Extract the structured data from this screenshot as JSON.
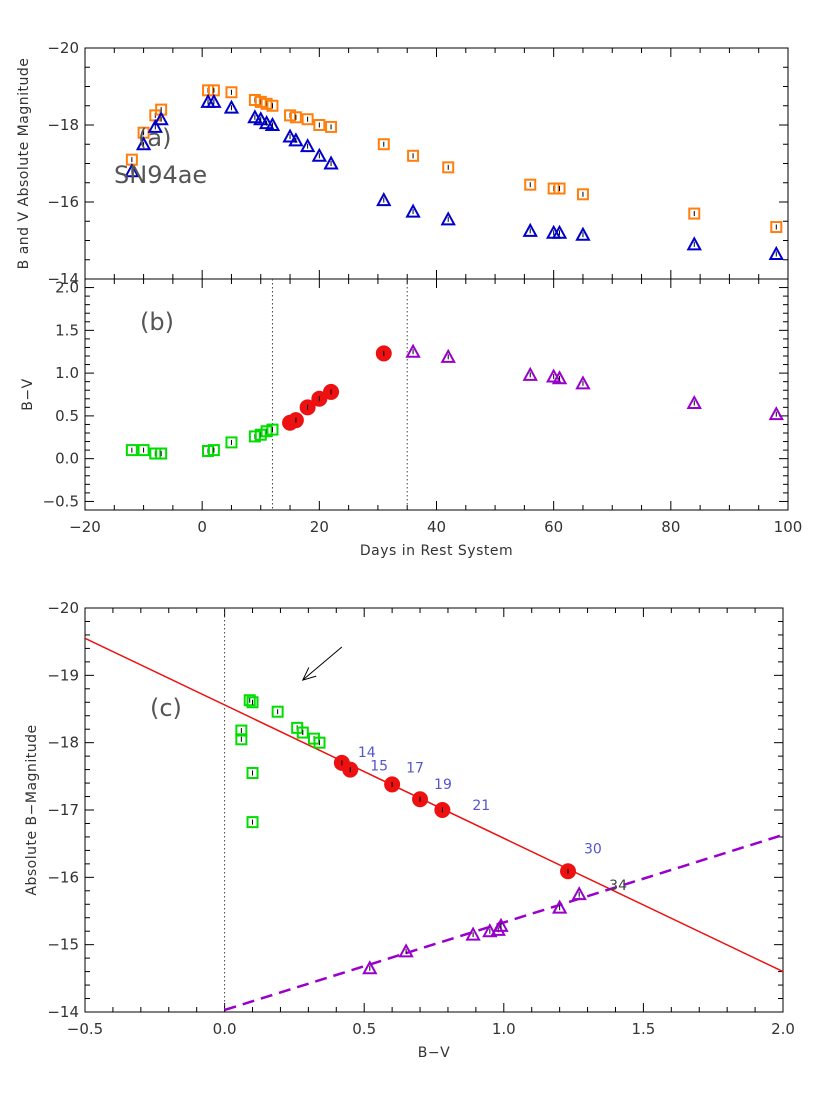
{
  "colors": {
    "b_mag": "#ff7f0e",
    "v_mag": "#0000cc",
    "early": "#00dd00",
    "mid": "#ee1111",
    "late": "#9900cc",
    "fit": "#ee1111",
    "label_blue": "#5555cc",
    "label_dark": "#444444"
  },
  "chart_data": [
    {
      "id": "a",
      "type": "scatter",
      "panel_label": "(a)",
      "annotation": "SN94ae",
      "xlabel": "",
      "ylabel": "B and V Absolute Magnitude",
      "xlim": [
        -20,
        100
      ],
      "ylim": [
        -14,
        -20
      ],
      "yticks": [
        -20,
        -18,
        -16,
        -14
      ],
      "series": [
        {
          "marker": "square",
          "color_key": "b_mag",
          "points": [
            [
              -12,
              -17.1
            ],
            [
              -10,
              -17.8
            ],
            [
              -8,
              -18.25
            ],
            [
              -7,
              -18.4
            ],
            [
              1,
              -18.9
            ],
            [
              2,
              -18.9
            ],
            [
              5,
              -18.85
            ],
            [
              9,
              -18.65
            ],
            [
              10,
              -18.6
            ],
            [
              11,
              -18.55
            ],
            [
              12,
              -18.5
            ],
            [
              15,
              -18.25
            ],
            [
              16,
              -18.2
            ],
            [
              18,
              -18.15
            ],
            [
              20,
              -18.0
            ],
            [
              22,
              -17.95
            ],
            [
              31,
              -17.5
            ],
            [
              36,
              -17.2
            ],
            [
              42,
              -16.9
            ],
            [
              56,
              -16.45
            ],
            [
              60,
              -16.35
            ],
            [
              61,
              -16.35
            ],
            [
              65,
              -16.2
            ],
            [
              84,
              -15.7
            ],
            [
              98,
              -15.35
            ]
          ]
        },
        {
          "marker": "triangle",
          "color_key": "v_mag",
          "points": [
            [
              -12,
              -16.8
            ],
            [
              -10,
              -17.5
            ],
            [
              -8,
              -17.95
            ],
            [
              -7,
              -18.15
            ],
            [
              1,
              -18.6
            ],
            [
              2,
              -18.6
            ],
            [
              5,
              -18.45
            ],
            [
              9,
              -18.2
            ],
            [
              10,
              -18.15
            ],
            [
              11,
              -18.05
            ],
            [
              12,
              -18.0
            ],
            [
              15,
              -17.7
            ],
            [
              16,
              -17.6
            ],
            [
              18,
              -17.45
            ],
            [
              20,
              -17.2
            ],
            [
              22,
              -17.0
            ],
            [
              31,
              -16.05
            ],
            [
              36,
              -15.75
            ],
            [
              42,
              -15.55
            ],
            [
              56,
              -15.25
            ],
            [
              60,
              -15.2
            ],
            [
              61,
              -15.2
            ],
            [
              65,
              -15.15
            ],
            [
              84,
              -14.9
            ],
            [
              98,
              -14.65
            ]
          ]
        }
      ]
    },
    {
      "id": "b",
      "type": "scatter",
      "panel_label": "(b)",
      "xlabel": "Days in Rest System",
      "ylabel": "B−V",
      "xlim": [
        -20,
        100
      ],
      "ylim": [
        -0.6,
        2.1
      ],
      "xticks": [
        -20,
        0,
        20,
        40,
        60,
        80,
        100
      ],
      "xticklabels": [
        "−20",
        "0",
        "20",
        "40",
        "60",
        "80",
        "100"
      ],
      "yticks": [
        -0.5,
        0.0,
        0.5,
        1.0,
        1.5,
        2.0
      ],
      "yticklabels": [
        "−0.5",
        "0.0",
        "0.5",
        "1.0",
        "1.5",
        "2.0"
      ],
      "vlines": [
        12,
        35
      ],
      "series": [
        {
          "marker": "square",
          "color_key": "early",
          "points": [
            [
              -12,
              0.1
            ],
            [
              -10,
              0.1
            ],
            [
              -8,
              0.06
            ],
            [
              -7,
              0.06
            ],
            [
              1,
              0.09
            ],
            [
              2,
              0.1
            ],
            [
              5,
              0.19
            ],
            [
              9,
              0.26
            ],
            [
              10,
              0.28
            ],
            [
              11,
              0.32
            ],
            [
              12,
              0.34
            ]
          ]
        },
        {
          "marker": "circle",
          "color_key": "mid",
          "points": [
            [
              15,
              0.42
            ],
            [
              16,
              0.45
            ],
            [
              18,
              0.6
            ],
            [
              20,
              0.7
            ],
            [
              22,
              0.78
            ],
            [
              31,
              1.23
            ]
          ]
        },
        {
          "marker": "triangle",
          "color_key": "late",
          "points": [
            [
              36,
              1.25
            ],
            [
              42,
              1.19
            ],
            [
              56,
              0.98
            ],
            [
              60,
              0.96
            ],
            [
              61,
              0.94
            ],
            [
              65,
              0.88
            ],
            [
              84,
              0.65
            ],
            [
              98,
              0.52
            ]
          ]
        }
      ]
    },
    {
      "id": "c",
      "type": "scatter",
      "panel_label": "(c)",
      "xlabel": "B−V",
      "ylabel": "Absolute B−Magnitude",
      "xlim": [
        -0.5,
        2.0
      ],
      "ylim": [
        -14,
        -20
      ],
      "xticks": [
        -0.5,
        0.0,
        0.5,
        1.0,
        1.5,
        2.0
      ],
      "xticklabels": [
        "−0.5",
        "0.0",
        "0.5",
        "1.0",
        "1.5",
        "2.0"
      ],
      "yticks": [
        -20,
        -19,
        -18,
        -17,
        -16,
        -15,
        -14
      ],
      "yticklabels": [
        "−20",
        "−19",
        "−18",
        "−17",
        "−16",
        "−15",
        "−14"
      ],
      "vlines": [
        0.0
      ],
      "fit_lines": [
        {
          "style": "solid",
          "color_key": "fit",
          "from": [
            -0.5,
            -19.55
          ],
          "to": [
            2.0,
            -14.6
          ]
        },
        {
          "style": "dashed",
          "color_key": "late",
          "from": [
            0.0,
            -14.03
          ],
          "to": [
            2.0,
            -16.63
          ]
        }
      ],
      "arrow": {
        "from": [
          0.42,
          -19.42
        ],
        "to": [
          0.28,
          -18.93
        ]
      },
      "series": [
        {
          "marker": "square",
          "color_key": "early",
          "points": [
            [
              0.1,
              -16.82
            ],
            [
              0.1,
              -17.55
            ],
            [
              0.06,
              -18.05
            ],
            [
              0.06,
              -18.18
            ],
            [
              0.09,
              -18.63
            ],
            [
              0.1,
              -18.6
            ],
            [
              0.19,
              -18.46
            ],
            [
              0.26,
              -18.22
            ],
            [
              0.28,
              -18.15
            ],
            [
              0.32,
              -18.06
            ],
            [
              0.34,
              -18.0
            ]
          ]
        },
        {
          "marker": "circle",
          "color_key": "mid",
          "points": [
            [
              0.42,
              -17.7
            ],
            [
              0.45,
              -17.6
            ],
            [
              0.6,
              -17.38
            ],
            [
              0.7,
              -17.16
            ],
            [
              0.78,
              -17.0
            ],
            [
              1.23,
              -16.09
            ]
          ]
        },
        {
          "marker": "triangle",
          "color_key": "late",
          "points": [
            [
              0.52,
              -14.65
            ],
            [
              0.65,
              -14.9
            ],
            [
              0.89,
              -15.15
            ],
            [
              0.95,
              -15.2
            ],
            [
              0.98,
              -15.22
            ],
            [
              0.99,
              -15.28
            ],
            [
              1.2,
              -15.55
            ],
            [
              1.27,
              -15.75
            ]
          ]
        }
      ],
      "point_labels": [
        {
          "text": "14",
          "x": 0.42,
          "y": -17.7,
          "color_key": "label_blue"
        },
        {
          "text": "15",
          "x": 0.45,
          "y": -17.6,
          "color_key": "label_blue"
        },
        {
          "text": "17",
          "x": 0.6,
          "y": -17.38,
          "color_key": "label_blue"
        },
        {
          "text": "19",
          "x": 0.7,
          "y": -17.16,
          "color_key": "label_blue"
        },
        {
          "text": "21",
          "x": 0.78,
          "y": -17.0,
          "color_key": "label_blue"
        },
        {
          "text": "30",
          "x": 1.23,
          "y": -16.09,
          "color_key": "label_blue"
        },
        {
          "text": "34",
          "x": 1.27,
          "y": -15.75,
          "color_key": "label_dark"
        }
      ]
    }
  ]
}
